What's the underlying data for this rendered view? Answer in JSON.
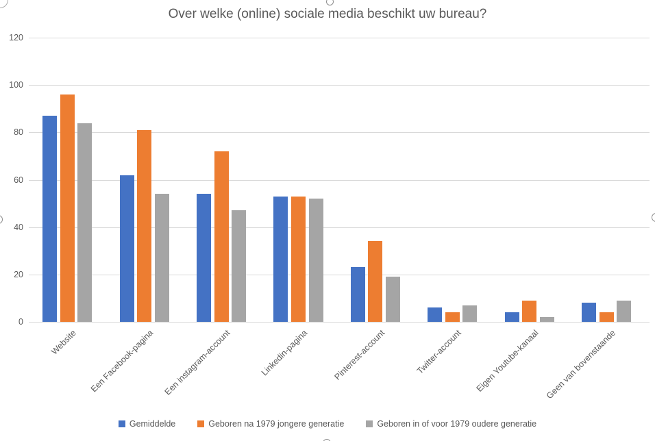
{
  "chart_data": {
    "type": "bar",
    "title": "Over welke (online) sociale media beschikt uw bureau?",
    "categories": [
      "Website",
      "Een Facebook-pagina",
      "Een instagram-account",
      "Linkedin-pagina",
      "Pinterest-account",
      "Twitter-account",
      "Eigen Youtube-kanaal",
      "Geen van bovenstaande"
    ],
    "series": [
      {
        "name": "Gemiddelde",
        "color": "#4472C4",
        "values": [
          87,
          62,
          54,
          53,
          23,
          6,
          4,
          8
        ]
      },
      {
        "name": "Geboren na 1979 jongere generatie",
        "color": "#ED7D31",
        "values": [
          96,
          81,
          72,
          53,
          34,
          4,
          9,
          4
        ]
      },
      {
        "name": "Geboren in of voor 1979 oudere generatie",
        "color": "#A5A5A5",
        "values": [
          84,
          54,
          47,
          52,
          19,
          7,
          2,
          9
        ]
      }
    ],
    "y_axis": {
      "min": 0,
      "max": 120,
      "step": 20,
      "tick_labels": [
        "0",
        "20",
        "40",
        "60",
        "80",
        "100",
        "120"
      ]
    },
    "grid": true,
    "legend_position": "bottom",
    "text_color": "#595959",
    "grid_color": "#D9D9D9"
  },
  "selection_handles": {
    "border_color": "#8C8C8C",
    "fill_color": "#FFFFFF"
  }
}
